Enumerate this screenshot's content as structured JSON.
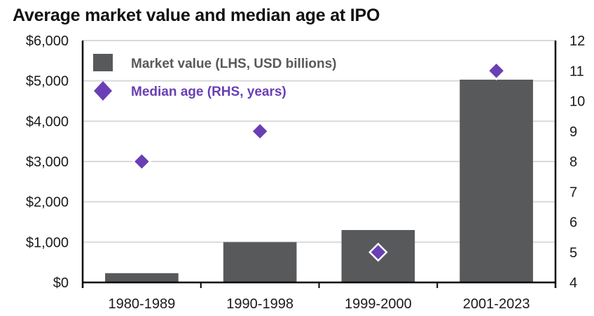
{
  "chart_data": {
    "type": "bar",
    "title": "Average market value and median age at IPO",
    "categories": [
      "1980-1989",
      "1990-1998",
      "1999-2000",
      "2001-2023"
    ],
    "series": [
      {
        "name": "Market value (LHS, USD billions)",
        "type": "bar",
        "axis": "left",
        "color": "#58595b",
        "values": [
          230,
          1000,
          1300,
          5030
        ]
      },
      {
        "name": "Median age (RHS, years)",
        "type": "scatter",
        "marker": "diamond",
        "axis": "right",
        "color": "#6a3fb5",
        "values": [
          8,
          9,
          5,
          11
        ]
      }
    ],
    "y_left": {
      "range": [
        0,
        6000
      ],
      "ticks": [
        0,
        1000,
        2000,
        3000,
        4000,
        5000,
        6000
      ],
      "tick_labels": [
        "$0",
        "$1,000",
        "$2,000",
        "$3,000",
        "$4,000",
        "$5,000",
        "$6,000"
      ]
    },
    "y_right": {
      "range": [
        4,
        12
      ],
      "ticks": [
        4,
        5,
        6,
        7,
        8,
        9,
        10,
        11,
        12
      ],
      "tick_labels": [
        "4",
        "5",
        "6",
        "7",
        "8",
        "9",
        "10",
        "11",
        "12"
      ]
    },
    "xlabel": "",
    "ylabel": "",
    "grid": true,
    "legend_position": "top-left",
    "legend_colors": {
      "market_value_text": "#58595b",
      "median_age_text": "#6a3fb5"
    }
  }
}
